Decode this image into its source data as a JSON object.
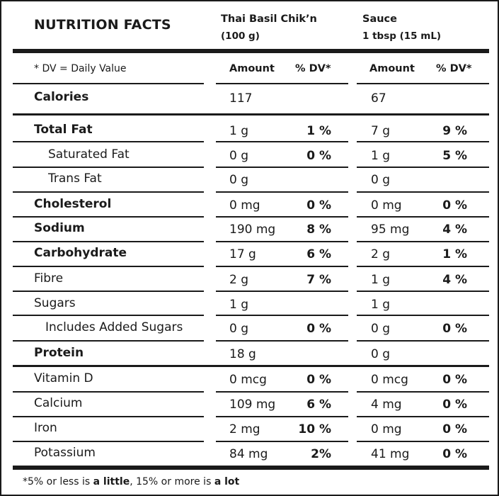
{
  "title": "NUTRITION FACTS",
  "columns": [
    {
      "name": "Thai Basil Chik’n",
      "serving": "(100 g)"
    },
    {
      "name": "Sauce",
      "serving": "1 tbsp (15 mL)"
    }
  ],
  "dv_note": "* DV = Daily Value",
  "amount_header": "Amount",
  "dv_header": "% DV*",
  "rows": [
    {
      "label": "Calories",
      "bold": true,
      "c1": {
        "amt": "117",
        "dv": ""
      },
      "c2": {
        "amt": "67",
        "dv": ""
      }
    },
    {
      "label": "Total Fat",
      "bold": true,
      "c1": {
        "amt": "1 g",
        "dv": "1 %"
      },
      "c2": {
        "amt": "7 g",
        "dv": "9 %"
      }
    },
    {
      "label": "Saturated Fat",
      "bold": false,
      "c1": {
        "amt": "0 g",
        "dv": "0 %"
      },
      "c2": {
        "amt": "1 g",
        "dv": "5 %"
      }
    },
    {
      "label": "Trans Fat",
      "bold": false,
      "c1": {
        "amt": "0 g",
        "dv": ""
      },
      "c2": {
        "amt": "0 g",
        "dv": ""
      }
    },
    {
      "label": "Cholesterol",
      "bold": true,
      "c1": {
        "amt": "0 mg",
        "dv": "0 %"
      },
      "c2": {
        "amt": "0 mg",
        "dv": "0 %"
      }
    },
    {
      "label": "Sodium",
      "bold": true,
      "c1": {
        "amt": "190 mg",
        "dv": "8 %"
      },
      "c2": {
        "amt": "95 mg",
        "dv": "4 %"
      }
    },
    {
      "label": "Carbohydrate",
      "bold": true,
      "c1": {
        "amt": "17 g",
        "dv": "6 %"
      },
      "c2": {
        "amt": "2 g",
        "dv": "1 %"
      }
    },
    {
      "label": "Fibre",
      "bold": false,
      "c1": {
        "amt": "2 g",
        "dv": "7 %"
      },
      "c2": {
        "amt": "1 g",
        "dv": "4 %"
      }
    },
    {
      "label": "Sugars",
      "bold": false,
      "c1": {
        "amt": "1 g",
        "dv": ""
      },
      "c2": {
        "amt": "1 g",
        "dv": ""
      }
    },
    {
      "label": "Includes Added Sugars",
      "bold": false,
      "c1": {
        "amt": "0 g",
        "dv": "0 %"
      },
      "c2": {
        "amt": "0 g",
        "dv": "0 %"
      }
    },
    {
      "label": "Protein",
      "bold": true,
      "c1": {
        "amt": "18 g",
        "dv": ""
      },
      "c2": {
        "amt": "0 g",
        "dv": ""
      }
    },
    {
      "label": "Vitamin D",
      "bold": false,
      "c1": {
        "amt": "0 mcg",
        "dv": "0 %"
      },
      "c2": {
        "amt": "0 mcg",
        "dv": "0 %"
      }
    },
    {
      "label": "Calcium",
      "bold": false,
      "c1": {
        "amt": "109 mg",
        "dv": "6 %"
      },
      "c2": {
        "amt": "4 mg",
        "dv": "0 %"
      }
    },
    {
      "label": "Iron",
      "bold": false,
      "c1": {
        "amt": "2 mg",
        "dv": "10 %"
      },
      "c2": {
        "amt": "0 mg",
        "dv": "0 %"
      }
    },
    {
      "label": "Potassium",
      "bold": false,
      "c1": {
        "amt": "84 mg",
        "dv": "2%"
      },
      "c2": {
        "amt": "41 mg",
        "dv": "0 %"
      }
    }
  ],
  "footnote": {
    "p1": "*5% or less is ",
    "b1": "a little",
    "p2": ", 15% or more is ",
    "b2": "a lot"
  }
}
